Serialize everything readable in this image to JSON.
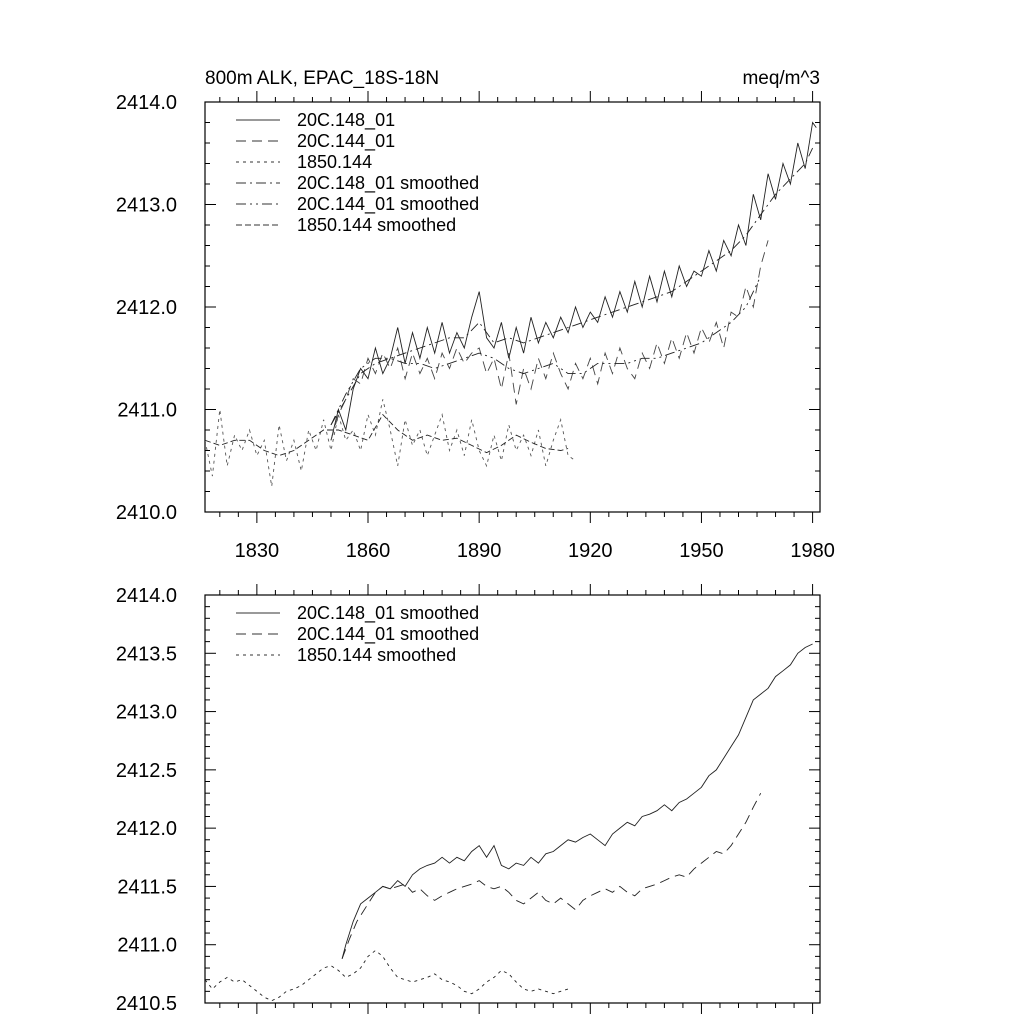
{
  "chart_data": [
    {
      "type": "line",
      "title": "800m ALK, EPAC_18S-18N",
      "units": "meq/m^3",
      "xlim": [
        1816,
        1982
      ],
      "ylim": [
        2410.0,
        2414.0
      ],
      "x_ticks": [
        1830,
        1860,
        1890,
        1920,
        1950,
        1980
      ],
      "x_tick_labels": [
        "1830",
        "1860",
        "1890",
        "1920",
        "1950",
        "1980"
      ],
      "y_ticks": [
        2410.0,
        2411.0,
        2412.0,
        2413.0,
        2414.0
      ],
      "y_tick_labels": [
        "2410.0",
        "2411.0",
        "2412.0",
        "2413.0",
        "2414.0"
      ],
      "legend": [
        "20C.148_01",
        "20C.144_01",
        "1850.144",
        "20C.148_01 smoothed",
        "20C.144_01 smoothed",
        "1850.144 smoothed"
      ],
      "series": [
        {
          "name": "20C.148_01",
          "x": [
            1850,
            1852,
            1854,
            1856,
            1858,
            1860,
            1862,
            1864,
            1866,
            1868,
            1870,
            1872,
            1874,
            1876,
            1878,
            1880,
            1882,
            1884,
            1886,
            1888,
            1890,
            1892,
            1894,
            1896,
            1898,
            1900,
            1902,
            1904,
            1906,
            1908,
            1910,
            1912,
            1914,
            1916,
            1918,
            1920,
            1922,
            1924,
            1926,
            1928,
            1930,
            1932,
            1934,
            1936,
            1938,
            1940,
            1942,
            1944,
            1946,
            1948,
            1950,
            1952,
            1954,
            1956,
            1958,
            1960,
            1962,
            1964,
            1966,
            1968,
            1970,
            1972,
            1974,
            1976,
            1978,
            1980,
            1981
          ],
          "values": [
            2410.7,
            2411.0,
            2410.8,
            2411.2,
            2411.4,
            2411.3,
            2411.6,
            2411.35,
            2411.5,
            2411.8,
            2411.45,
            2411.75,
            2411.5,
            2411.8,
            2411.55,
            2411.85,
            2411.55,
            2411.75,
            2411.6,
            2411.9,
            2412.15,
            2411.7,
            2411.6,
            2411.85,
            2411.5,
            2411.8,
            2411.55,
            2411.9,
            2411.65,
            2411.85,
            2411.7,
            2411.9,
            2411.75,
            2412.0,
            2411.8,
            2411.95,
            2411.85,
            2412.1,
            2411.9,
            2412.15,
            2411.95,
            2412.25,
            2412.0,
            2412.3,
            2412.05,
            2412.35,
            2412.1,
            2412.4,
            2412.2,
            2412.35,
            2412.3,
            2412.55,
            2412.35,
            2412.65,
            2412.5,
            2412.8,
            2412.6,
            2413.1,
            2412.85,
            2413.3,
            2413.05,
            2413.4,
            2413.2,
            2413.6,
            2413.35,
            2413.8,
            2413.75
          ]
        },
        {
          "name": "20C.144_01",
          "x": [
            1850,
            1852,
            1854,
            1856,
            1858,
            1860,
            1862,
            1864,
            1866,
            1868,
            1870,
            1872,
            1874,
            1876,
            1878,
            1880,
            1882,
            1884,
            1886,
            1888,
            1890,
            1892,
            1894,
            1896,
            1898,
            1900,
            1902,
            1904,
            1906,
            1908,
            1910,
            1912,
            1914,
            1916,
            1918,
            1920,
            1922,
            1924,
            1926,
            1928,
            1930,
            1932,
            1934,
            1936,
            1938,
            1940,
            1942,
            1944,
            1946,
            1948,
            1950,
            1952,
            1954,
            1956,
            1958,
            1960,
            1962,
            1964,
            1966,
            1968
          ],
          "values": [
            2410.7,
            2410.95,
            2411.1,
            2411.3,
            2411.25,
            2411.5,
            2411.35,
            2411.55,
            2411.4,
            2411.6,
            2411.3,
            2411.55,
            2411.35,
            2411.5,
            2411.3,
            2411.55,
            2411.4,
            2411.6,
            2411.45,
            2411.55,
            2411.6,
            2411.35,
            2411.5,
            2411.2,
            2411.55,
            2411.05,
            2411.4,
            2411.2,
            2411.5,
            2411.3,
            2411.55,
            2411.35,
            2411.2,
            2411.45,
            2411.3,
            2411.5,
            2411.25,
            2411.55,
            2411.35,
            2411.6,
            2411.4,
            2411.3,
            2411.55,
            2411.4,
            2411.65,
            2411.45,
            2411.7,
            2411.5,
            2411.75,
            2411.55,
            2411.8,
            2411.65,
            2411.85,
            2411.6,
            2411.95,
            2411.9,
            2412.2,
            2412.0,
            2412.4,
            2412.65
          ]
        },
        {
          "name": "1850.144",
          "x": [
            1816,
            1818,
            1820,
            1822,
            1824,
            1826,
            1828,
            1830,
            1832,
            1834,
            1836,
            1838,
            1840,
            1842,
            1844,
            1846,
            1848,
            1850,
            1852,
            1854,
            1856,
            1858,
            1860,
            1862,
            1864,
            1866,
            1868,
            1870,
            1872,
            1874,
            1876,
            1878,
            1880,
            1882,
            1884,
            1886,
            1888,
            1890,
            1892,
            1894,
            1896,
            1898,
            1900,
            1902,
            1904,
            1906,
            1908,
            1910,
            1912,
            1914,
            1916
          ],
          "values": [
            2410.7,
            2410.35,
            2411.0,
            2410.45,
            2410.75,
            2410.6,
            2410.8,
            2410.55,
            2410.7,
            2410.25,
            2410.85,
            2410.5,
            2410.7,
            2410.4,
            2410.8,
            2410.6,
            2410.9,
            2410.6,
            2410.95,
            2410.7,
            2410.8,
            2410.6,
            2410.95,
            2410.75,
            2411.1,
            2410.8,
            2410.45,
            2410.9,
            2410.65,
            2410.8,
            2410.55,
            2410.75,
            2410.95,
            2410.6,
            2410.8,
            2410.55,
            2410.9,
            2410.6,
            2410.45,
            2410.75,
            2410.5,
            2410.85,
            2410.6,
            2410.75,
            2410.55,
            2410.8,
            2410.45,
            2410.7,
            2410.9,
            2410.55,
            2410.5
          ]
        },
        {
          "name": "20C.148_01 smoothed",
          "x": [
            1850,
            1854,
            1858,
            1862,
            1866,
            1870,
            1874,
            1878,
            1882,
            1886,
            1890,
            1892,
            1894,
            1898,
            1902,
            1906,
            1910,
            1914,
            1918,
            1922,
            1926,
            1930,
            1934,
            1938,
            1942,
            1946,
            1950,
            1954,
            1958,
            1962,
            1966,
            1970,
            1974,
            1978,
            1980
          ],
          "values": [
            2410.85,
            2411.1,
            2411.35,
            2411.45,
            2411.5,
            2411.55,
            2411.6,
            2411.65,
            2411.7,
            2411.7,
            2411.85,
            2411.75,
            2411.65,
            2411.7,
            2411.65,
            2411.7,
            2411.75,
            2411.8,
            2411.85,
            2411.9,
            2411.95,
            2412.0,
            2412.05,
            2412.1,
            2412.15,
            2412.25,
            2412.35,
            2412.45,
            2412.55,
            2412.7,
            2412.9,
            2413.1,
            2413.25,
            2413.4,
            2413.55
          ]
        },
        {
          "name": "20C.144_01 smoothed",
          "x": [
            1850,
            1854,
            1858,
            1862,
            1866,
            1870,
            1874,
            1878,
            1882,
            1886,
            1890,
            1894,
            1898,
            1902,
            1906,
            1910,
            1914,
            1918,
            1922,
            1926,
            1930,
            1934,
            1938,
            1942,
            1946,
            1950,
            1954,
            1958,
            1962,
            1966
          ],
          "values": [
            2410.85,
            2411.15,
            2411.4,
            2411.5,
            2411.5,
            2411.45,
            2411.45,
            2411.4,
            2411.45,
            2411.5,
            2411.55,
            2411.5,
            2411.4,
            2411.35,
            2411.4,
            2411.45,
            2411.35,
            2411.35,
            2411.45,
            2411.45,
            2411.45,
            2411.5,
            2411.5,
            2411.55,
            2411.6,
            2411.65,
            2411.75,
            2411.85,
            2412.0,
            2412.3
          ]
        },
        {
          "name": "1850.144 smoothed",
          "x": [
            1816,
            1820,
            1824,
            1828,
            1832,
            1836,
            1840,
            1844,
            1848,
            1852,
            1856,
            1860,
            1864,
            1868,
            1872,
            1876,
            1880,
            1884,
            1888,
            1892,
            1896,
            1900,
            1904,
            1908,
            1912,
            1914
          ],
          "values": [
            2410.7,
            2410.65,
            2410.7,
            2410.7,
            2410.6,
            2410.55,
            2410.6,
            2410.7,
            2410.8,
            2410.8,
            2410.75,
            2410.7,
            2410.95,
            2410.8,
            2410.7,
            2410.75,
            2410.7,
            2410.72,
            2410.65,
            2410.58,
            2410.65,
            2410.75,
            2410.68,
            2410.62,
            2410.6,
            2410.62
          ]
        }
      ]
    },
    {
      "type": "line",
      "xlim": [
        1816,
        1982
      ],
      "ylim": [
        2410.5,
        2414.0
      ],
      "x_ticks": [
        1830,
        1860,
        1890,
        1920,
        1950,
        1980
      ],
      "y_ticks": [
        2410.5,
        2411.0,
        2411.5,
        2412.0,
        2412.5,
        2413.0,
        2413.5,
        2414.0
      ],
      "y_tick_labels": [
        "2410.5",
        "2411.0",
        "2411.5",
        "2412.0",
        "2412.5",
        "2413.0",
        "2413.5",
        "2414.0"
      ],
      "legend": [
        "20C.148_01 smoothed",
        "20C.144_01 smoothed",
        "1850.144 smoothed"
      ],
      "series": [
        {
          "name": "20C.148_01 smoothed",
          "x": [
            1853,
            1854,
            1856,
            1858,
            1860,
            1862,
            1864,
            1866,
            1868,
            1870,
            1872,
            1874,
            1876,
            1878,
            1880,
            1882,
            1884,
            1886,
            1888,
            1890,
            1892,
            1894,
            1896,
            1898,
            1900,
            1902,
            1904,
            1906,
            1908,
            1910,
            1912,
            1914,
            1916,
            1918,
            1920,
            1922,
            1924,
            1926,
            1928,
            1930,
            1932,
            1934,
            1936,
            1938,
            1940,
            1942,
            1944,
            1946,
            1948,
            1950,
            1952,
            1954,
            1956,
            1958,
            1960,
            1962,
            1964,
            1966,
            1968,
            1970,
            1972,
            1974,
            1976,
            1978,
            1980
          ],
          "values": [
            2410.88,
            2411.0,
            2411.2,
            2411.35,
            2411.4,
            2411.45,
            2411.5,
            2411.48,
            2411.55,
            2411.5,
            2411.6,
            2411.65,
            2411.68,
            2411.7,
            2411.75,
            2411.7,
            2411.75,
            2411.72,
            2411.8,
            2411.85,
            2411.75,
            2411.85,
            2411.68,
            2411.65,
            2411.7,
            2411.68,
            2411.75,
            2411.7,
            2411.78,
            2411.8,
            2411.85,
            2411.9,
            2411.88,
            2411.92,
            2411.95,
            2411.9,
            2411.85,
            2411.95,
            2412.0,
            2412.05,
            2412.02,
            2412.1,
            2412.12,
            2412.15,
            2412.2,
            2412.15,
            2412.22,
            2412.25,
            2412.3,
            2412.35,
            2412.45,
            2412.5,
            2412.6,
            2412.7,
            2412.8,
            2412.95,
            2413.1,
            2413.15,
            2413.2,
            2413.3,
            2413.35,
            2413.4,
            2413.5,
            2413.55,
            2413.58
          ]
        },
        {
          "name": "20C.144_01 smoothed",
          "x": [
            1853,
            1855,
            1857,
            1860,
            1862,
            1864,
            1866,
            1868,
            1870,
            1872,
            1874,
            1876,
            1878,
            1880,
            1882,
            1884,
            1886,
            1888,
            1890,
            1892,
            1894,
            1896,
            1898,
            1900,
            1902,
            1904,
            1906,
            1908,
            1910,
            1912,
            1914,
            1916,
            1918,
            1920,
            1922,
            1924,
            1926,
            1928,
            1930,
            1932,
            1934,
            1936,
            1938,
            1940,
            1942,
            1944,
            1946,
            1948,
            1950,
            1952,
            1954,
            1956,
            1958,
            1960,
            1962,
            1964,
            1966
          ],
          "values": [
            2410.88,
            2411.05,
            2411.2,
            2411.35,
            2411.45,
            2411.5,
            2411.48,
            2411.5,
            2411.52,
            2411.45,
            2411.48,
            2411.42,
            2411.38,
            2411.42,
            2411.45,
            2411.48,
            2411.5,
            2411.52,
            2411.55,
            2411.5,
            2411.48,
            2411.5,
            2411.45,
            2411.38,
            2411.35,
            2411.4,
            2411.45,
            2411.38,
            2411.35,
            2411.4,
            2411.35,
            2411.3,
            2411.38,
            2411.42,
            2411.45,
            2411.48,
            2411.45,
            2411.5,
            2411.45,
            2411.42,
            2411.48,
            2411.5,
            2411.52,
            2411.55,
            2411.58,
            2411.6,
            2411.58,
            2411.65,
            2411.7,
            2411.75,
            2411.8,
            2411.78,
            2411.85,
            2411.95,
            2412.05,
            2412.18,
            2412.3
          ]
        },
        {
          "name": "1850.144 smoothed",
          "x": [
            1816,
            1818,
            1820,
            1822,
            1824,
            1826,
            1828,
            1830,
            1832,
            1834,
            1836,
            1838,
            1840,
            1842,
            1844,
            1846,
            1848,
            1850,
            1852,
            1854,
            1856,
            1858,
            1860,
            1862,
            1864,
            1866,
            1868,
            1870,
            1872,
            1874,
            1876,
            1878,
            1880,
            1882,
            1884,
            1886,
            1888,
            1890,
            1892,
            1894,
            1896,
            1898,
            1900,
            1902,
            1904,
            1906,
            1908,
            1910,
            1912,
            1914
          ],
          "values": [
            2410.7,
            2410.62,
            2410.68,
            2410.72,
            2410.68,
            2410.7,
            2410.65,
            2410.6,
            2410.55,
            2410.52,
            2410.55,
            2410.6,
            2410.62,
            2410.65,
            2410.7,
            2410.75,
            2410.8,
            2410.82,
            2410.78,
            2410.72,
            2410.75,
            2410.8,
            2410.9,
            2410.95,
            2410.9,
            2410.8,
            2410.72,
            2410.7,
            2410.68,
            2410.7,
            2410.72,
            2410.75,
            2410.7,
            2410.68,
            2410.65,
            2410.6,
            2410.58,
            2410.62,
            2410.68,
            2410.72,
            2410.78,
            2410.75,
            2410.68,
            2410.62,
            2410.6,
            2410.62,
            2410.6,
            2410.58,
            2410.6,
            2410.62
          ]
        }
      ]
    }
  ]
}
